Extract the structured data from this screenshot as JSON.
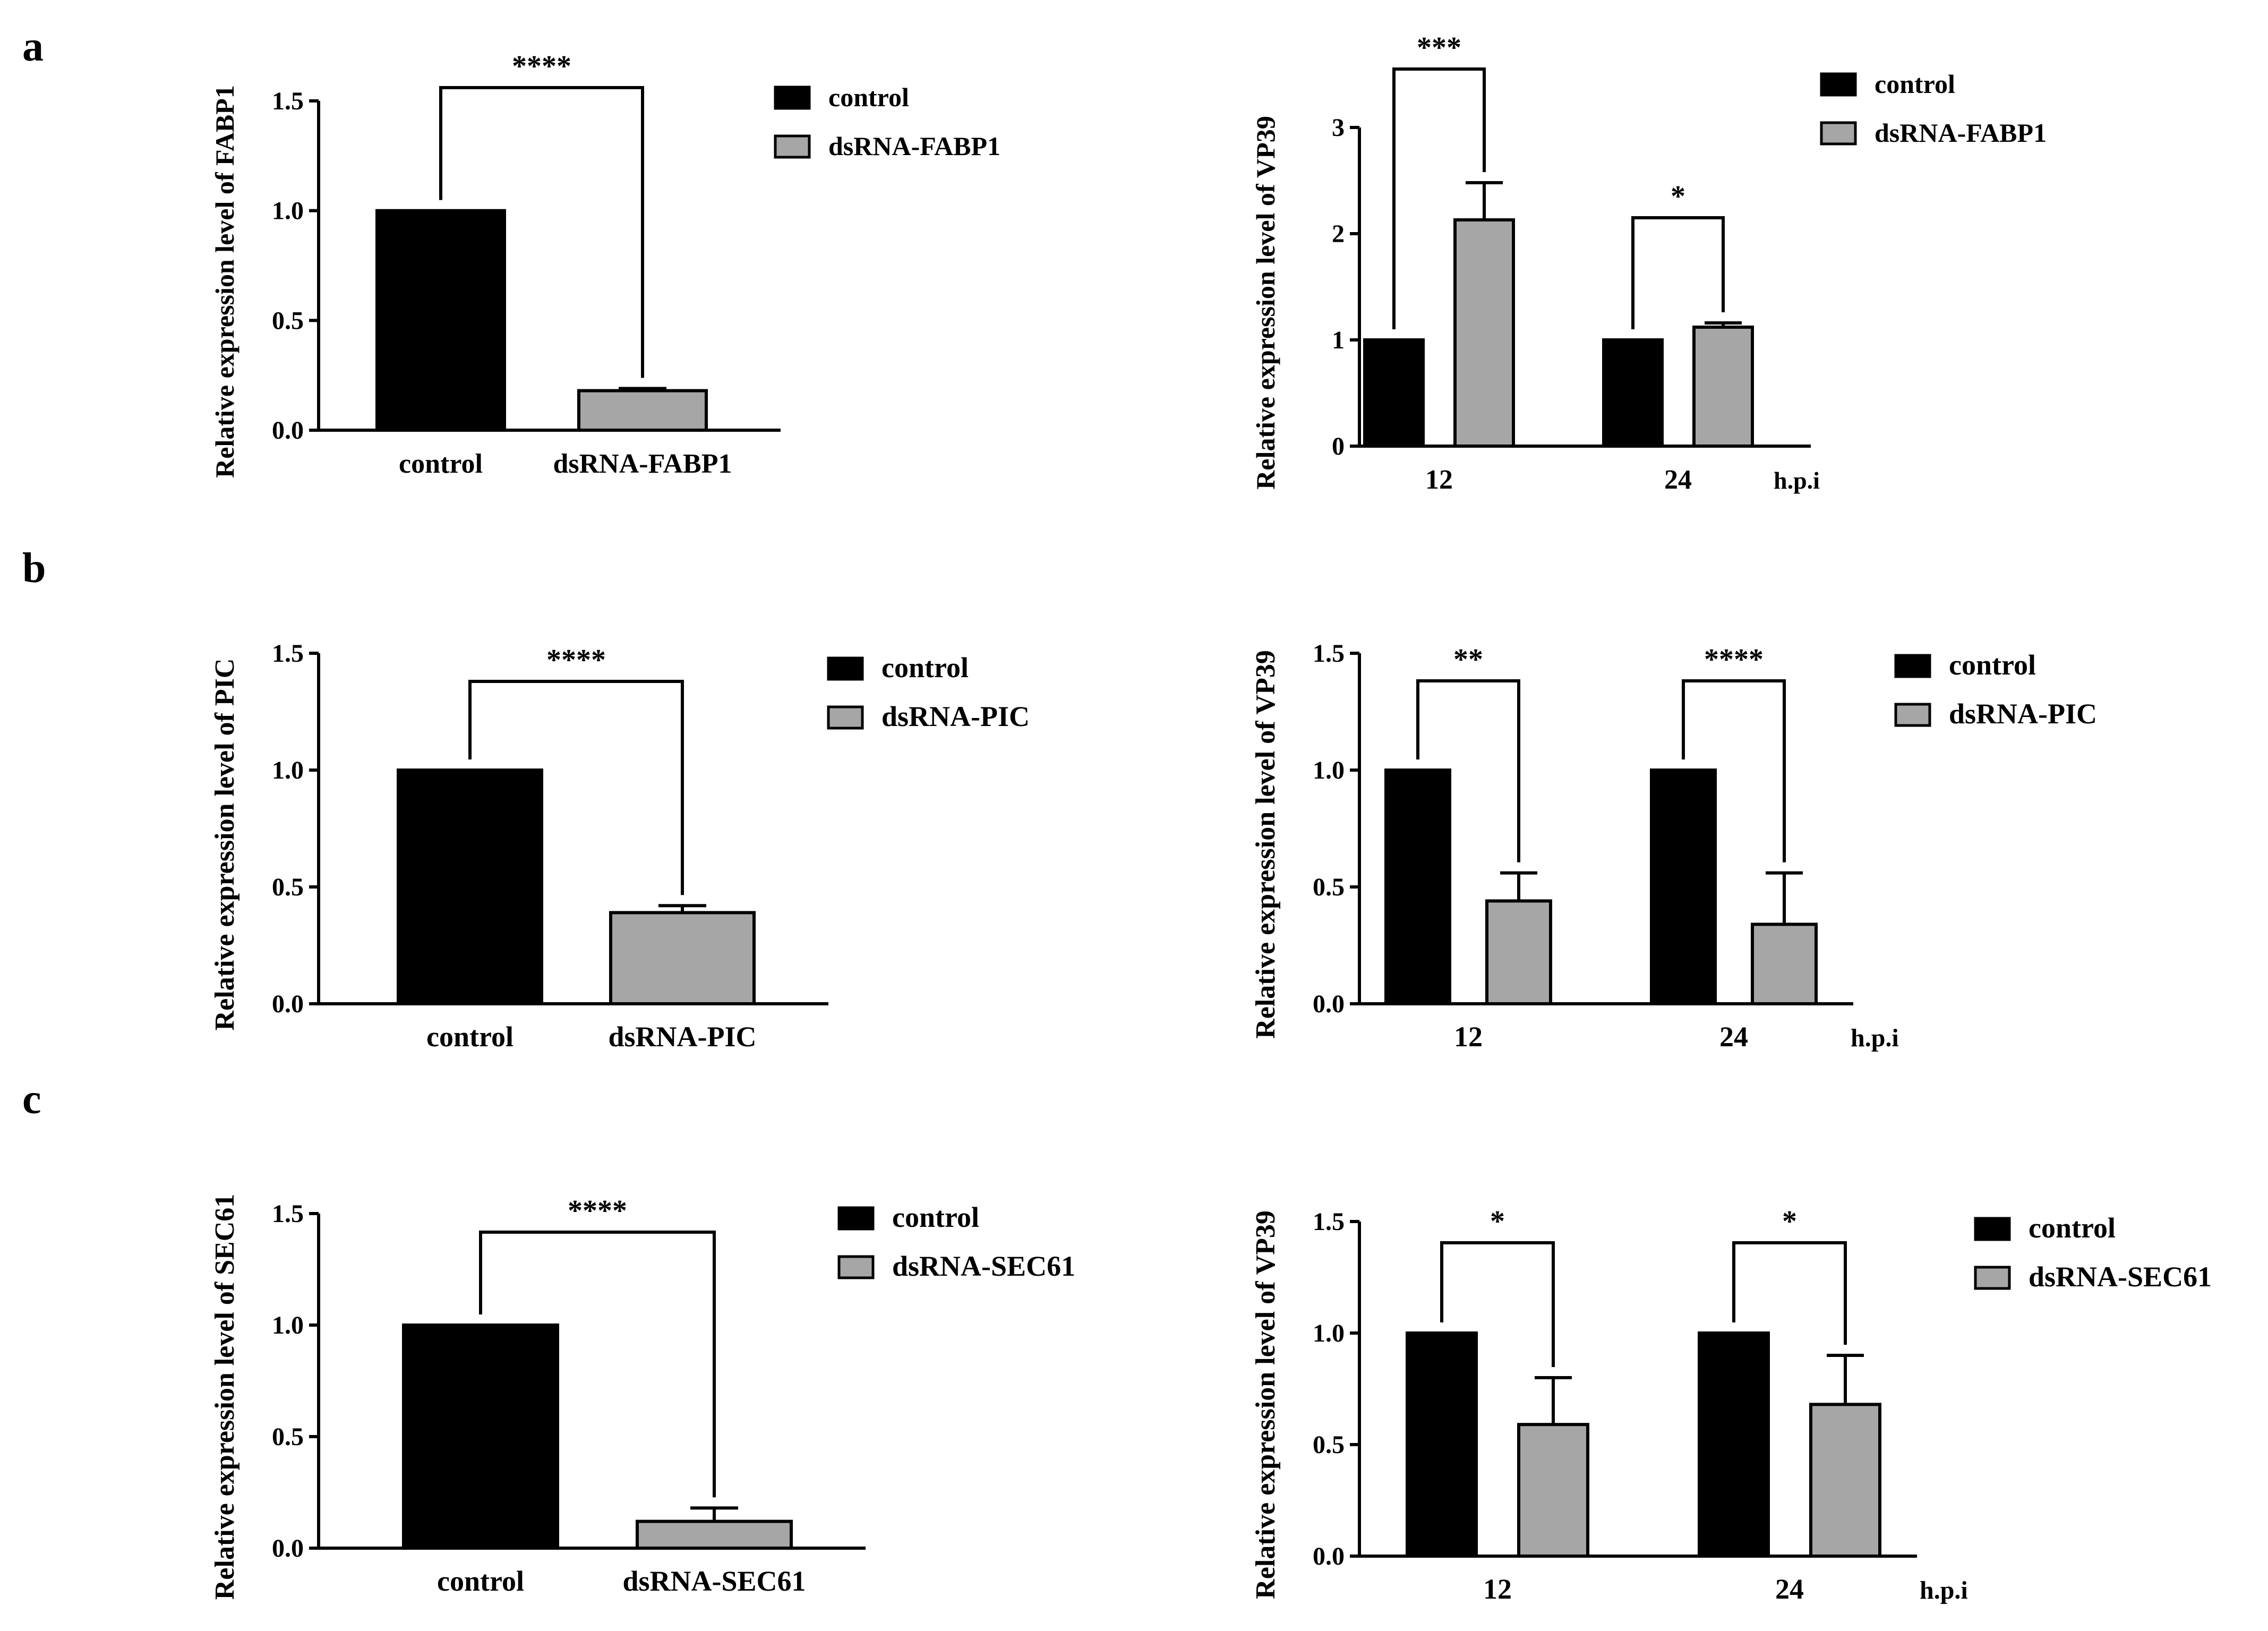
{
  "figure": {
    "panels": [
      "a",
      "b",
      "c"
    ]
  },
  "colors": {
    "control": "#000000",
    "treatment": "#a6a6a6",
    "axis": "#000000"
  },
  "chart_data": [
    {
      "id": "a-left",
      "type": "bar",
      "title": "",
      "xlabel": "",
      "ylabel": "Relative expression level of  FABP1",
      "ylim": [
        0,
        1.5
      ],
      "yticks": [
        0.0,
        0.5,
        1.0,
        1.5
      ],
      "ytick_labels": [
        "0.0",
        "0.5",
        "1.0",
        "1.5"
      ],
      "categories": [
        "control",
        "dsRNA-FABP1"
      ],
      "values": [
        1.0,
        0.18
      ],
      "errors": [
        0,
        0.01
      ],
      "series_colors": [
        "control",
        "treatment"
      ],
      "legend": [
        "control",
        "dsRNA-FABP1"
      ],
      "legend_position": "right",
      "significance": [
        {
          "from": 0,
          "to": 1,
          "label": "****"
        }
      ],
      "unit_label": ""
    },
    {
      "id": "a-right",
      "type": "bar",
      "title": "",
      "xlabel": "",
      "ylabel": "Relative expression level of  VP39",
      "ylim": [
        0,
        3
      ],
      "yticks": [
        0,
        1,
        2,
        3
      ],
      "ytick_labels": [
        "0",
        "1",
        "2",
        "3"
      ],
      "categories": [
        "12",
        "24"
      ],
      "series": [
        {
          "name": "control",
          "values": [
            1.0,
            1.0
          ],
          "errors": [
            0,
            0
          ]
        },
        {
          "name": "dsRNA-FABP1",
          "values": [
            2.13,
            1.12
          ],
          "errors": [
            0.35,
            0.04
          ]
        }
      ],
      "legend": [
        "control",
        "dsRNA-FABP1"
      ],
      "legend_position": "top-right",
      "significance": [
        {
          "category": 0,
          "label": "***"
        },
        {
          "category": 1,
          "label": "*"
        }
      ],
      "unit_label": "h.p.i"
    },
    {
      "id": "b-left",
      "type": "bar",
      "title": "",
      "xlabel": "",
      "ylabel": "Relative expression level of  PIC",
      "ylim": [
        0,
        1.5
      ],
      "yticks": [
        0.0,
        0.5,
        1.0,
        1.5
      ],
      "ytick_labels": [
        "0.0",
        "0.5",
        "1.0",
        "1.5"
      ],
      "categories": [
        "control",
        "dsRNA-PIC"
      ],
      "values": [
        1.0,
        0.39
      ],
      "errors": [
        0,
        0.03
      ],
      "series_colors": [
        "control",
        "treatment"
      ],
      "legend": [
        "control",
        "dsRNA-PIC"
      ],
      "legend_position": "right",
      "significance": [
        {
          "from": 0,
          "to": 1,
          "label": "****"
        }
      ],
      "unit_label": ""
    },
    {
      "id": "b-right",
      "type": "bar",
      "title": "",
      "xlabel": "",
      "ylabel": "Relative expression level of  VP39",
      "ylim": [
        0,
        1.5
      ],
      "yticks": [
        0.0,
        0.5,
        1.0,
        1.5
      ],
      "ytick_labels": [
        "0.0",
        "0.5",
        "1.0",
        "1.5"
      ],
      "categories": [
        "12",
        "24"
      ],
      "series": [
        {
          "name": "control",
          "values": [
            1.0,
            1.0
          ],
          "errors": [
            0,
            0
          ]
        },
        {
          "name": "dsRNA-PIC",
          "values": [
            0.44,
            0.34
          ],
          "errors": [
            0.12,
            0.22
          ]
        }
      ],
      "legend": [
        "control",
        "dsRNA-PIC"
      ],
      "legend_position": "top-right",
      "significance": [
        {
          "category": 0,
          "label": "**"
        },
        {
          "category": 1,
          "label": "****"
        }
      ],
      "unit_label": "h.p.i"
    },
    {
      "id": "c-left",
      "type": "bar",
      "title": "",
      "xlabel": "",
      "ylabel": "Relative expression level of  SEC61",
      "ylim": [
        0,
        1.5
      ],
      "yticks": [
        0.0,
        0.5,
        1.0,
        1.5
      ],
      "ytick_labels": [
        "0.0",
        "0.5",
        "1.0",
        "1.5"
      ],
      "categories": [
        "control",
        "dsRNA-SEC61"
      ],
      "values": [
        1.0,
        0.12
      ],
      "errors": [
        0,
        0.06
      ],
      "series_colors": [
        "control",
        "treatment"
      ],
      "legend": [
        "control",
        "dsRNA-SEC61"
      ],
      "legend_position": "right",
      "significance": [
        {
          "from": 0,
          "to": 1,
          "label": "****"
        }
      ],
      "unit_label": ""
    },
    {
      "id": "c-right",
      "type": "bar",
      "title": "",
      "xlabel": "",
      "ylabel": "Relative expression level of  VP39",
      "ylim": [
        0,
        1.5
      ],
      "yticks": [
        0.0,
        0.5,
        1.0,
        1.5
      ],
      "ytick_labels": [
        "0.0",
        "0.5",
        "1.0",
        "1.5"
      ],
      "categories": [
        "12",
        "24"
      ],
      "series": [
        {
          "name": "control",
          "values": [
            1.0,
            1.0
          ],
          "errors": [
            0,
            0
          ]
        },
        {
          "name": "dsRNA-SEC61",
          "values": [
            0.59,
            0.68
          ],
          "errors": [
            0.21,
            0.22
          ]
        }
      ],
      "legend": [
        "control",
        "dsRNA-SEC61"
      ],
      "legend_position": "top-right",
      "significance": [
        {
          "category": 0,
          "label": "*"
        },
        {
          "category": 1,
          "label": "*"
        }
      ],
      "unit_label": "h.p.i"
    }
  ]
}
